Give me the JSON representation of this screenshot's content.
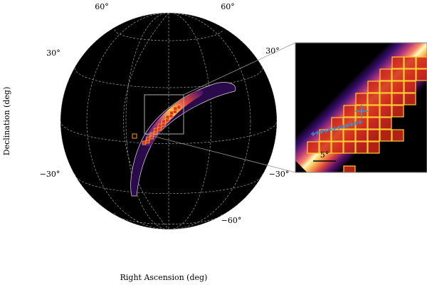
{
  "chart_data": {
    "type": "skymap",
    "xlabel": "Right Ascension (deg)",
    "ylabel": "Declination (deg)",
    "yticks": [
      {
        "value": 60,
        "label": "60°"
      },
      {
        "value": 30,
        "label": "30°"
      },
      {
        "value": -30,
        "label": "−30°"
      },
      {
        "value": -60,
        "label": "−60°"
      }
    ],
    "scale_bar": {
      "value": 5,
      "label": "5°"
    },
    "grid": true
  }
}
